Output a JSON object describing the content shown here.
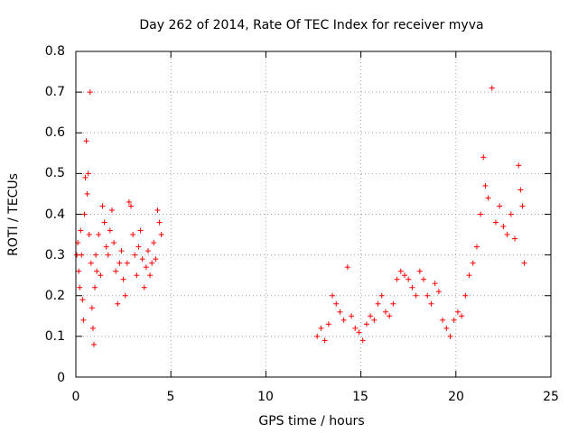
{
  "chart_data": {
    "type": "scatter",
    "title": "Day 262 of 2014, Rate Of TEC Index for receiver myva",
    "xlabel": "GPS time / hours",
    "ylabel": "ROTI / TECUs",
    "xlim": [
      0,
      25
    ],
    "ylim": [
      0,
      0.8
    ],
    "xticks": [
      "0",
      "5",
      "10",
      "15",
      "20",
      "25"
    ],
    "yticks": [
      "0",
      "0.1",
      "0.2",
      "0.3",
      "0.4",
      "0.5",
      "0.6",
      "0.7",
      "0.8"
    ],
    "grid": true,
    "marker": "+",
    "color": "#ff0000",
    "series": [
      {
        "name": "ROTI",
        "points": [
          [
            0.05,
            0.3
          ],
          [
            0.1,
            0.33
          ],
          [
            0.15,
            0.26
          ],
          [
            0.2,
            0.22
          ],
          [
            0.25,
            0.36
          ],
          [
            0.3,
            0.3
          ],
          [
            0.35,
            0.19
          ],
          [
            0.4,
            0.14
          ],
          [
            0.45,
            0.4
          ],
          [
            0.5,
            0.49
          ],
          [
            0.55,
            0.58
          ],
          [
            0.6,
            0.45
          ],
          [
            0.65,
            0.5
          ],
          [
            0.7,
            0.35
          ],
          [
            0.75,
            0.7
          ],
          [
            0.8,
            0.28
          ],
          [
            0.85,
            0.17
          ],
          [
            0.9,
            0.12
          ],
          [
            0.95,
            0.08
          ],
          [
            1.0,
            0.22
          ],
          [
            1.05,
            0.3
          ],
          [
            1.1,
            0.26
          ],
          [
            1.2,
            0.35
          ],
          [
            1.3,
            0.25
          ],
          [
            1.4,
            0.42
          ],
          [
            1.5,
            0.38
          ],
          [
            1.6,
            0.32
          ],
          [
            1.7,
            0.3
          ],
          [
            1.8,
            0.36
          ],
          [
            1.9,
            0.41
          ],
          [
            2.0,
            0.33
          ],
          [
            2.1,
            0.26
          ],
          [
            2.2,
            0.18
          ],
          [
            2.3,
            0.28
          ],
          [
            2.4,
            0.31
          ],
          [
            2.5,
            0.24
          ],
          [
            2.6,
            0.2
          ],
          [
            2.7,
            0.28
          ],
          [
            2.8,
            0.43
          ],
          [
            2.9,
            0.42
          ],
          [
            3.0,
            0.35
          ],
          [
            3.1,
            0.3
          ],
          [
            3.2,
            0.25
          ],
          [
            3.3,
            0.32
          ],
          [
            3.4,
            0.36
          ],
          [
            3.5,
            0.29
          ],
          [
            3.6,
            0.22
          ],
          [
            3.7,
            0.27
          ],
          [
            3.8,
            0.31
          ],
          [
            3.9,
            0.25
          ],
          [
            4.0,
            0.28
          ],
          [
            4.1,
            0.33
          ],
          [
            4.2,
            0.29
          ],
          [
            4.3,
            0.41
          ],
          [
            4.4,
            0.38
          ],
          [
            4.5,
            0.35
          ],
          [
            12.7,
            0.1
          ],
          [
            12.9,
            0.12
          ],
          [
            13.1,
            0.09
          ],
          [
            13.3,
            0.13
          ],
          [
            13.5,
            0.2
          ],
          [
            13.7,
            0.18
          ],
          [
            13.9,
            0.16
          ],
          [
            14.1,
            0.14
          ],
          [
            14.3,
            0.27
          ],
          [
            14.5,
            0.15
          ],
          [
            14.7,
            0.12
          ],
          [
            14.9,
            0.11
          ],
          [
            15.1,
            0.09
          ],
          [
            15.3,
            0.13
          ],
          [
            15.5,
            0.15
          ],
          [
            15.7,
            0.14
          ],
          [
            15.9,
            0.18
          ],
          [
            16.1,
            0.2
          ],
          [
            16.3,
            0.16
          ],
          [
            16.5,
            0.15
          ],
          [
            16.7,
            0.18
          ],
          [
            16.9,
            0.24
          ],
          [
            17.1,
            0.26
          ],
          [
            17.3,
            0.25
          ],
          [
            17.5,
            0.24
          ],
          [
            17.7,
            0.22
          ],
          [
            17.9,
            0.2
          ],
          [
            18.1,
            0.26
          ],
          [
            18.3,
            0.24
          ],
          [
            18.5,
            0.2
          ],
          [
            18.7,
            0.18
          ],
          [
            18.9,
            0.23
          ],
          [
            19.1,
            0.21
          ],
          [
            19.3,
            0.14
          ],
          [
            19.5,
            0.12
          ],
          [
            19.7,
            0.1
          ],
          [
            19.9,
            0.14
          ],
          [
            20.1,
            0.16
          ],
          [
            20.3,
            0.15
          ],
          [
            20.5,
            0.2
          ],
          [
            20.7,
            0.25
          ],
          [
            20.9,
            0.28
          ],
          [
            21.1,
            0.32
          ],
          [
            21.3,
            0.4
          ],
          [
            21.45,
            0.54
          ],
          [
            21.55,
            0.47
          ],
          [
            21.7,
            0.44
          ],
          [
            21.9,
            0.71
          ],
          [
            22.1,
            0.38
          ],
          [
            22.3,
            0.42
          ],
          [
            22.5,
            0.37
          ],
          [
            22.7,
            0.35
          ],
          [
            22.9,
            0.4
          ],
          [
            23.1,
            0.34
          ],
          [
            23.3,
            0.52
          ],
          [
            23.4,
            0.46
          ],
          [
            23.5,
            0.42
          ],
          [
            23.6,
            0.28
          ]
        ]
      }
    ]
  }
}
